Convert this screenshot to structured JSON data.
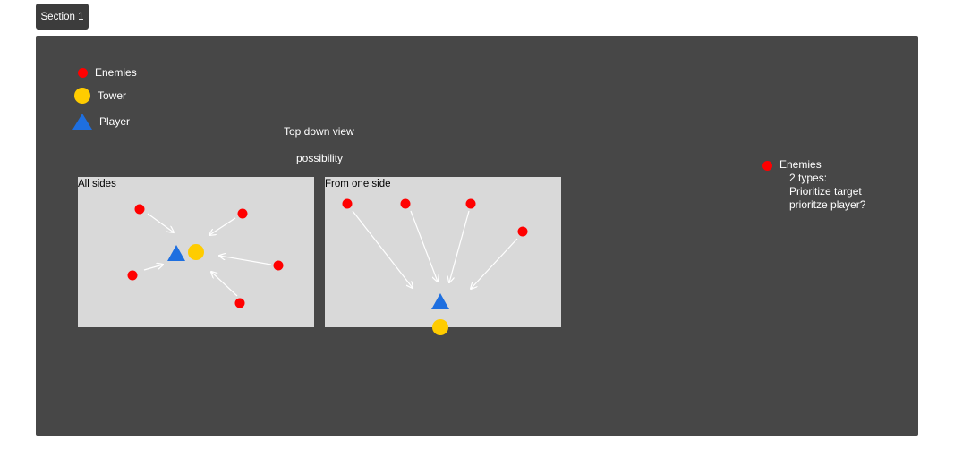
{
  "section_tab": {
    "label": "Section 1"
  },
  "legend": {
    "enemies": "Enemies",
    "tower": "Tower",
    "player": "Player"
  },
  "heading": {
    "line1": "Top down view",
    "line2": "possibility"
  },
  "panels": {
    "all_sides": {
      "title": "All sides"
    },
    "one_side": {
      "title": "From one side"
    }
  },
  "note": {
    "title": "Enemies",
    "lines": [
      "2 types:",
      "Prioritize target",
      "prioritze player?"
    ]
  },
  "colors": {
    "enemy": "#ff0000",
    "tower": "#ffcc00",
    "player": "#1e6fe0",
    "canvas": "#474747",
    "panel": "#d9d9d9"
  }
}
